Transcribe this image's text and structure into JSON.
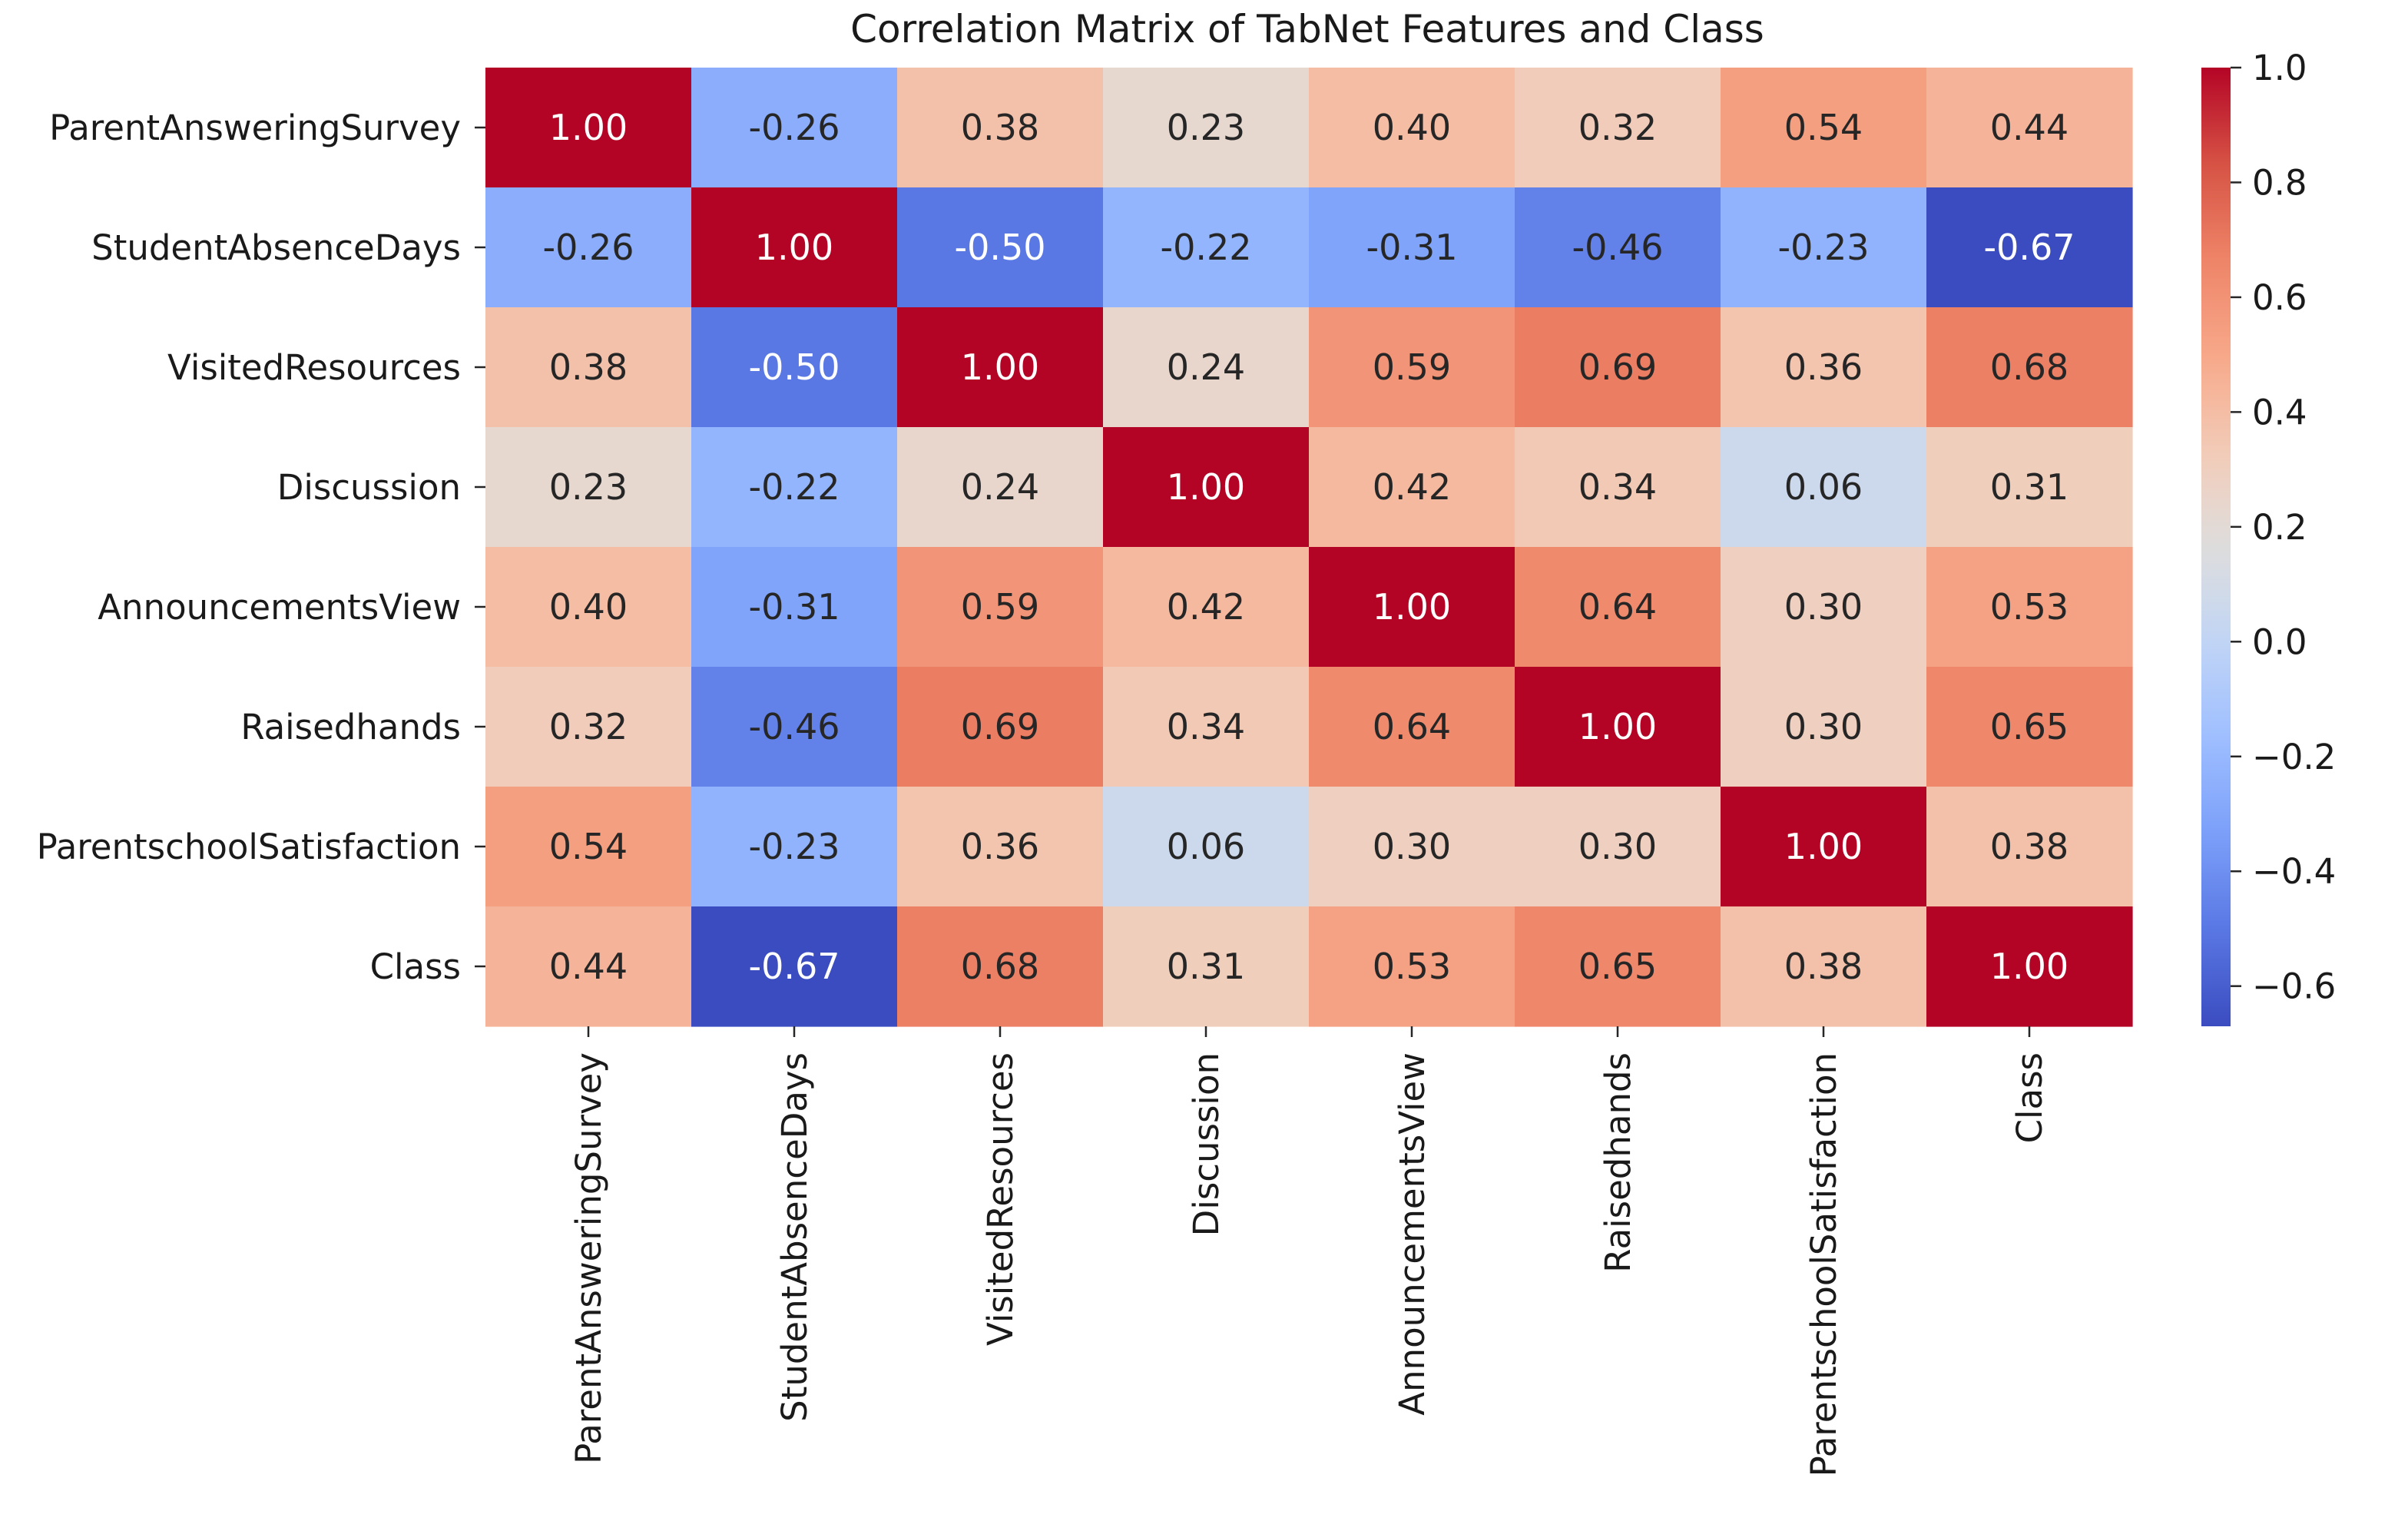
{
  "chart_data": {
    "type": "heatmap",
    "title": "Correlation Matrix of TabNet Features and Class",
    "xlabel": "",
    "ylabel": "",
    "rows": [
      "ParentAnsweringSurvey",
      "StudentAbsenceDays",
      "VisitedResources",
      "Discussion",
      "AnnouncementsView",
      "Raisedhands",
      "ParentschoolSatisfaction",
      "Class"
    ],
    "columns": [
      "ParentAnsweringSurvey",
      "StudentAbsenceDays",
      "VisitedResources",
      "Discussion",
      "AnnouncementsView",
      "Raisedhands",
      "ParentschoolSatisfaction",
      "Class"
    ],
    "values": [
      [
        1.0,
        -0.26,
        0.38,
        0.23,
        0.4,
        0.32,
        0.54,
        0.44
      ],
      [
        -0.26,
        1.0,
        -0.5,
        -0.22,
        -0.31,
        -0.46,
        -0.23,
        -0.67
      ],
      [
        0.38,
        -0.5,
        1.0,
        0.24,
        0.59,
        0.69,
        0.36,
        0.68
      ],
      [
        0.23,
        -0.22,
        0.24,
        1.0,
        0.42,
        0.34,
        0.06,
        0.31
      ],
      [
        0.4,
        -0.31,
        0.59,
        0.42,
        1.0,
        0.64,
        0.3,
        0.53
      ],
      [
        0.32,
        -0.46,
        0.69,
        0.34,
        0.64,
        1.0,
        0.3,
        0.65
      ],
      [
        0.54,
        -0.23,
        0.36,
        0.06,
        0.3,
        0.3,
        1.0,
        0.38
      ],
      [
        0.44,
        -0.67,
        0.68,
        0.31,
        0.53,
        0.65,
        0.38,
        1.0
      ]
    ],
    "labels": [
      [
        "1.00",
        "-0.26",
        "0.38",
        "0.23",
        "0.40",
        "0.32",
        "0.54",
        "0.44"
      ],
      [
        "-0.26",
        "1.00",
        "-0.50",
        "-0.22",
        "-0.31",
        "-0.46",
        "-0.23",
        "-0.67"
      ],
      [
        "0.38",
        "-0.50",
        "1.00",
        "0.24",
        "0.59",
        "0.69",
        "0.36",
        "0.68"
      ],
      [
        "0.23",
        "-0.22",
        "0.24",
        "1.00",
        "0.42",
        "0.34",
        "0.06",
        "0.31"
      ],
      [
        "0.40",
        "-0.31",
        "0.59",
        "0.42",
        "1.00",
        "0.64",
        "0.30",
        "0.53"
      ],
      [
        "0.32",
        "-0.46",
        "0.69",
        "0.34",
        "0.64",
        "1.00",
        "0.30",
        "0.65"
      ],
      [
        "0.54",
        "-0.23",
        "0.36",
        "0.06",
        "0.30",
        "0.30",
        "1.00",
        "0.38"
      ],
      [
        "0.44",
        "-0.67",
        "0.68",
        "0.31",
        "0.53",
        "0.65",
        "0.38",
        "1.00"
      ]
    ],
    "colormap": "coolwarm",
    "vmin": -0.67,
    "vmax": 1.0,
    "colorbar": {
      "ticks": [
        1.0,
        0.8,
        0.6,
        0.4,
        0.2,
        0.0,
        -0.2,
        -0.4,
        -0.6
      ],
      "tick_labels": [
        "1.0",
        "0.8",
        "0.6",
        "0.4",
        "0.2",
        "0.0",
        "−0.2",
        "−0.4",
        "−0.6"
      ],
      "placement": "right"
    },
    "grid": false,
    "colormap_stops": [
      {
        "value": 0.0,
        "color": "#3b4cc0"
      },
      {
        "value": 0.125,
        "color": "#5977e3"
      },
      {
        "value": 0.25,
        "color": "#7b9ff9"
      },
      {
        "value": 0.375,
        "color": "#9ebeff"
      },
      {
        "value": 0.5,
        "color": "#c0d4f5"
      },
      {
        "value": 0.5625,
        "color": "#d0dae9"
      },
      {
        "value": 0.625,
        "color": "#dddcdc"
      },
      {
        "value": 0.6875,
        "color": "#e9d5cb"
      },
      {
        "value": 0.75,
        "color": "#f2cbb7"
      },
      {
        "value": 0.875,
        "color": "#f7a889"
      },
      {
        "value": 1.0,
        "color": "#ee8468"
      },
      {
        "value": 1.125,
        "color": "#d65244"
      },
      {
        "value": 1.25,
        "color": "#b40426"
      }
    ]
  }
}
